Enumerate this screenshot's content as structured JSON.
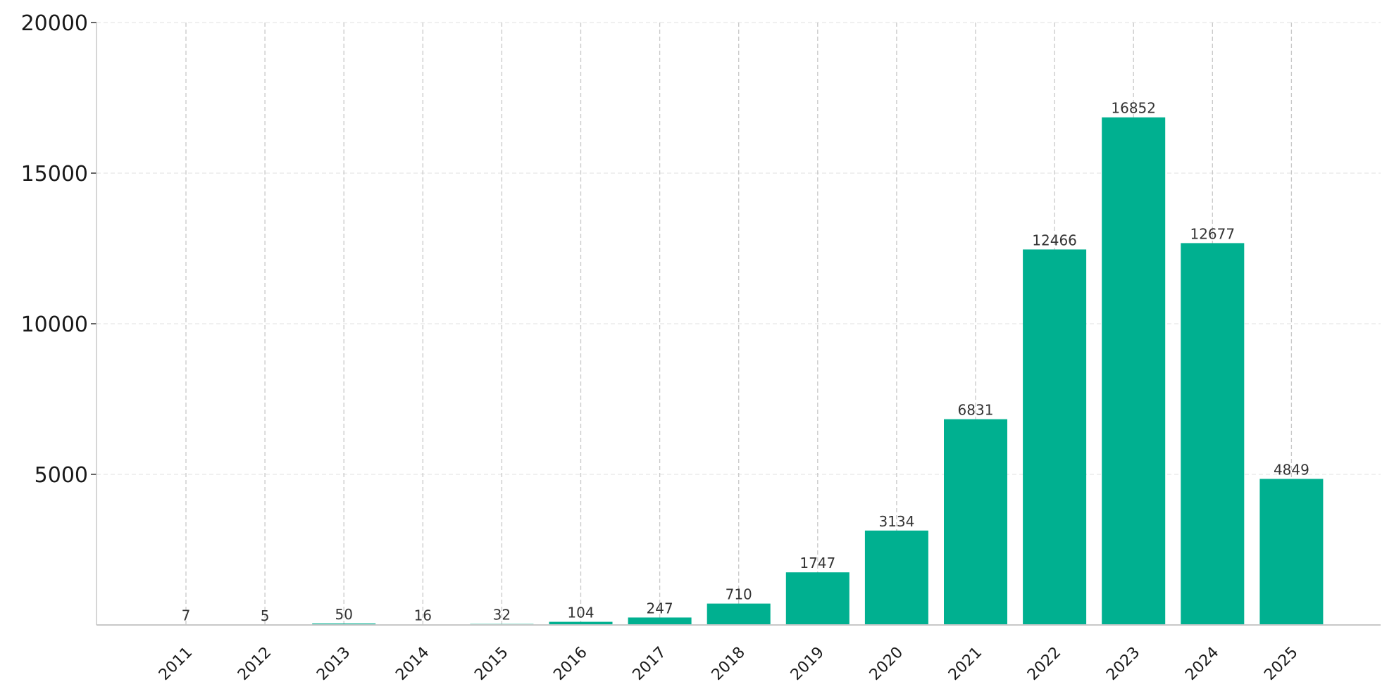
{
  "chart_data": {
    "type": "bar",
    "categories": [
      "2011",
      "2012",
      "2013",
      "2014",
      "2015",
      "2016",
      "2017",
      "2018",
      "2019",
      "2020",
      "2021",
      "2022",
      "2023",
      "2024",
      "2025"
    ],
    "values": [
      7,
      5,
      50,
      16,
      32,
      104,
      247,
      710,
      1747,
      3134,
      6831,
      12466,
      16852,
      12677,
      4849
    ],
    "ylim": [
      0,
      20000
    ],
    "yticks": [
      5000,
      10000,
      15000,
      20000
    ],
    "title": "",
    "xlabel": "",
    "ylabel": "",
    "grid": true,
    "bar_color": "#00b090",
    "x_tick_rotation_deg": 45
  }
}
